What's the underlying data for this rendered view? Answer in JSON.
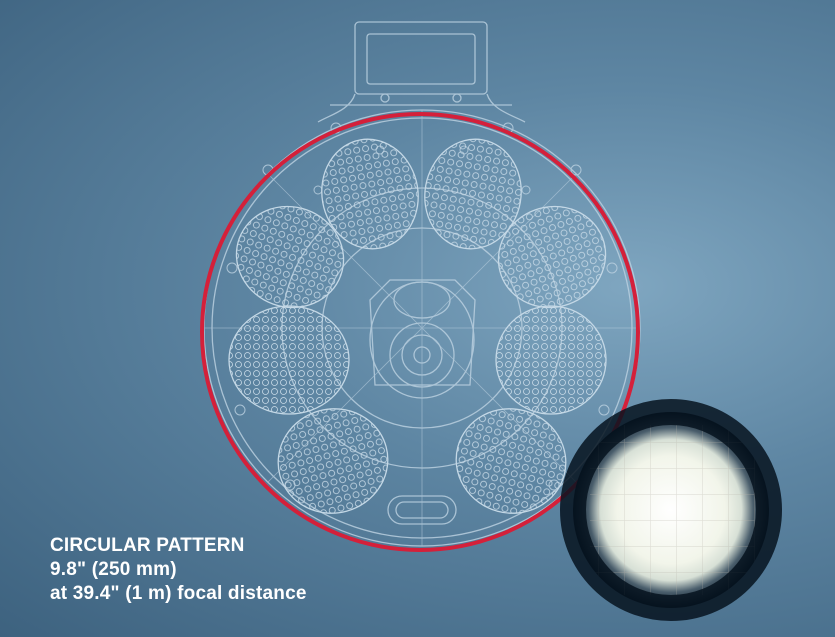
{
  "caption": {
    "title": "CIRCULAR PATTERN",
    "size": "9.8\" (250 mm)",
    "distance": "at 39.4\" (1 m) focal distance"
  },
  "colors": {
    "background": "#4f7896",
    "line_art": "#b9cfdf",
    "beam_circle": "#d4203a",
    "spot_light": "#f4f6ee",
    "spot_edge": "#05121e"
  },
  "icons": {
    "fixture": "led-fixture-drawing",
    "beam_ring": "beam-pattern-circle",
    "spot": "light-spot-inset"
  }
}
